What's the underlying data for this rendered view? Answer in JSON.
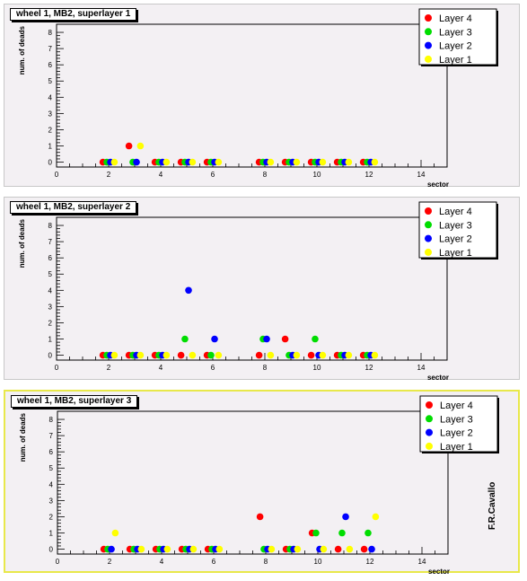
{
  "credit": "F.R.Cavallo",
  "chart_data": [
    {
      "type": "scatter",
      "title": "wheel 1, MB2, superlayer 1",
      "xlabel": "sector",
      "ylabel": "num. of deads",
      "xlim": [
        0,
        15
      ],
      "ylim": [
        -0.3,
        8.5
      ],
      "xticks": [
        "0",
        "2",
        "4",
        "6",
        "8",
        "10",
        "12",
        "14"
      ],
      "yticks": [
        "0",
        "1",
        "2",
        "3",
        "4",
        "5",
        "6",
        "7",
        "8"
      ],
      "series": [
        {
          "name": "Layer 4",
          "color": "#ff0000",
          "x": [
            2,
            3,
            4,
            5,
            6,
            8,
            9,
            10,
            11,
            12
          ],
          "y": [
            0,
            1,
            0,
            0,
            0,
            0,
            0,
            0,
            0,
            0
          ]
        },
        {
          "name": "Layer 3",
          "color": "#00dd00",
          "x": [
            2,
            3,
            4,
            5,
            6,
            8,
            9,
            10,
            11,
            12
          ],
          "y": [
            0,
            0,
            0,
            0,
            0,
            0,
            0,
            0,
            0,
            0
          ]
        },
        {
          "name": "Layer 2",
          "color": "#0000ff",
          "x": [
            2,
            3,
            4,
            5,
            6,
            8,
            9,
            10,
            11,
            12
          ],
          "y": [
            0,
            0,
            0,
            0,
            0,
            0,
            0,
            0,
            0,
            0
          ]
        },
        {
          "name": "Layer 1",
          "color": "#ffff00",
          "x": [
            2,
            3,
            4,
            5,
            6,
            8,
            9,
            10,
            11,
            12
          ],
          "y": [
            0,
            1,
            0,
            0,
            0,
            0,
            0,
            0,
            0,
            0
          ]
        }
      ]
    },
    {
      "type": "scatter",
      "title": "wheel 1, MB2, superlayer 2",
      "xlabel": "sector",
      "ylabel": "num. of deads",
      "xlim": [
        0,
        15
      ],
      "ylim": [
        -0.3,
        8.5
      ],
      "xticks": [
        "0",
        "2",
        "4",
        "6",
        "8",
        "10",
        "12",
        "14"
      ],
      "yticks": [
        "0",
        "1",
        "2",
        "3",
        "4",
        "5",
        "6",
        "7",
        "8"
      ],
      "series": [
        {
          "name": "Layer 4",
          "color": "#ff0000",
          "x": [
            2,
            3,
            4,
            5,
            6,
            8,
            9,
            10,
            11,
            12
          ],
          "y": [
            0,
            0,
            0,
            0,
            0,
            0,
            1,
            0,
            0,
            0
          ]
        },
        {
          "name": "Layer 3",
          "color": "#00dd00",
          "x": [
            2,
            3,
            4,
            5,
            6,
            8,
            9,
            10,
            11,
            12
          ],
          "y": [
            0,
            0,
            0,
            1,
            0,
            1,
            0,
            1,
            0,
            0
          ]
        },
        {
          "name": "Layer 2",
          "color": "#0000ff",
          "x": [
            2,
            3,
            4,
            5,
            6,
            8,
            9,
            10,
            11,
            12
          ],
          "y": [
            0,
            0,
            0,
            4,
            1,
            1,
            0,
            0,
            0,
            0
          ]
        },
        {
          "name": "Layer 1",
          "color": "#ffff00",
          "x": [
            2,
            3,
            4,
            5,
            6,
            8,
            9,
            10,
            11,
            12
          ],
          "y": [
            0,
            0,
            0,
            0,
            0,
            0,
            0,
            0,
            0,
            0
          ]
        }
      ]
    },
    {
      "type": "scatter",
      "title": "wheel 1, MB2, superlayer 3",
      "xlabel": "sector",
      "ylabel": "num. of deads",
      "xlim": [
        0,
        15
      ],
      "ylim": [
        -0.3,
        8.5
      ],
      "xticks": [
        "0",
        "2",
        "4",
        "6",
        "8",
        "10",
        "12",
        "14"
      ],
      "yticks": [
        "0",
        "1",
        "2",
        "3",
        "4",
        "5",
        "6",
        "7",
        "8"
      ],
      "series": [
        {
          "name": "Layer 4",
          "color": "#ff0000",
          "x": [
            2,
            3,
            4,
            5,
            6,
            8,
            9,
            10,
            11,
            12
          ],
          "y": [
            0,
            0,
            0,
            0,
            0,
            2,
            0,
            1,
            0,
            0
          ]
        },
        {
          "name": "Layer 3",
          "color": "#00dd00",
          "x": [
            2,
            3,
            4,
            5,
            6,
            8,
            9,
            10,
            11,
            12
          ],
          "y": [
            0,
            0,
            0,
            0,
            0,
            0,
            0,
            1,
            1,
            1
          ]
        },
        {
          "name": "Layer 2",
          "color": "#0000ff",
          "x": [
            2,
            3,
            4,
            5,
            6,
            8,
            9,
            10,
            11,
            12
          ],
          "y": [
            0,
            0,
            0,
            0,
            0,
            0,
            0,
            0,
            2,
            0
          ]
        },
        {
          "name": "Layer 1",
          "color": "#ffff00",
          "x": [
            2,
            3,
            4,
            5,
            6,
            8,
            9,
            10,
            11,
            12
          ],
          "y": [
            1,
            0,
            0,
            0,
            0,
            0,
            0,
            0,
            0,
            2
          ]
        }
      ]
    }
  ]
}
